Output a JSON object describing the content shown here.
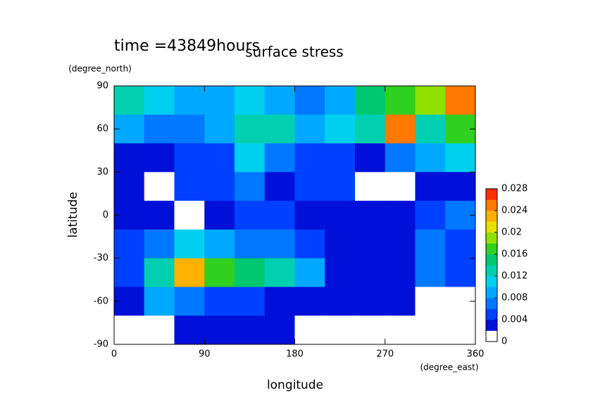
{
  "chart_data": {
    "type": "contour",
    "title": "surface stress",
    "subtitle": "time =43849hours",
    "x_label": "longitude",
    "x_unit": "(degree_east)",
    "y_label": "latitude",
    "y_unit": "(degree_north)",
    "xlim": [
      0,
      360
    ],
    "xticks": [
      0,
      90,
      180,
      270,
      360
    ],
    "ylim": [
      -90,
      90
    ],
    "yticks": [
      -90,
      -60,
      -30,
      0,
      30,
      60,
      90
    ],
    "x": [
      15,
      45,
      75,
      105,
      135,
      165,
      195,
      225,
      255,
      285,
      315,
      345
    ],
    "y": [
      80,
      60,
      40,
      20,
      0,
      -20,
      -40,
      -60,
      -80
    ],
    "z": [
      [
        0.012,
        0.01,
        0.008,
        0.008,
        0.01,
        0.008,
        0.007,
        0.008,
        0.014,
        0.016,
        0.018,
        0.024
      ],
      [
        0.008,
        0.007,
        0.006,
        0.008,
        0.012,
        0.012,
        0.008,
        0.01,
        0.012,
        0.024,
        0.012,
        0.016
      ],
      [
        0.003,
        0.003,
        0.004,
        0.005,
        0.01,
        0.006,
        0.004,
        0.005,
        0.002,
        0.006,
        0.008,
        0.01
      ],
      [
        0.002,
        0.001,
        0.004,
        0.004,
        0.006,
        0.003,
        0.004,
        0.004,
        0,
        0.001,
        0.003,
        0.003
      ],
      [
        0.003,
        0.002,
        0.001,
        0.003,
        0.004,
        0.004,
        0.003,
        0.003,
        0.002,
        0.003,
        0.004,
        0.006
      ],
      [
        0.004,
        0.006,
        0.01,
        0.008,
        0.006,
        0.006,
        0.004,
        0.003,
        0.002,
        0.003,
        0.006,
        0.004
      ],
      [
        0.004,
        0.012,
        0.022,
        0.016,
        0.014,
        0.012,
        0.008,
        0.003,
        0.002,
        0.003,
        0.006,
        0.004
      ],
      [
        0.002,
        0.008,
        0.006,
        0.004,
        0.004,
        0.003,
        0.003,
        0.003,
        0.002,
        0.003,
        0.001,
        0
      ],
      [
        0,
        0,
        0.002,
        0.003,
        0.003,
        0.002,
        0.001,
        0,
        0,
        0,
        0,
        0
      ]
    ],
    "levels": [
      0,
      0.002,
      0.004,
      0.006,
      0.008,
      0.01,
      0.012,
      0.014,
      0.016,
      0.018,
      0.02,
      0.022,
      0.024,
      0.026,
      0.028
    ],
    "colors": [
      "#ffffff",
      "#0010d8",
      "#0040ff",
      "#0078ff",
      "#00a8ff",
      "#00d0f0",
      "#00d0b0",
      "#00c870",
      "#30d020",
      "#90e000",
      "#e8e000",
      "#ffb000",
      "#ff7800",
      "#ff3000"
    ],
    "colorbar_ticks": [
      0,
      0.004,
      0.008,
      0.012,
      0.016,
      0.02,
      0.024,
      0.028
    ]
  }
}
